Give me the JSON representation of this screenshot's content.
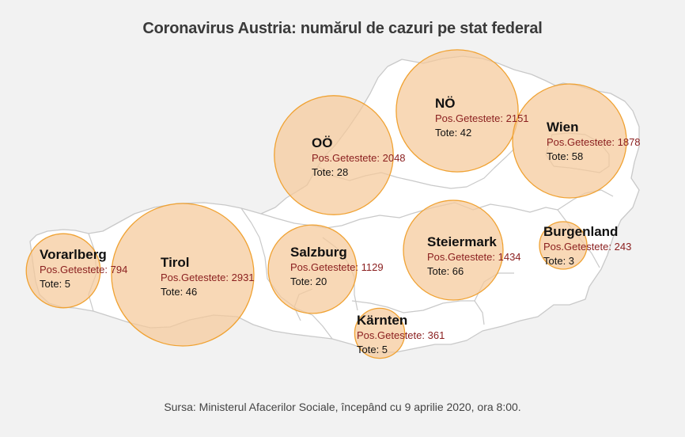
{
  "title": "Coronavirus Austria: numărul de cazuri pe stat federal",
  "source": "Sursa: Ministerul Afacerilor Sociale, începând cu 9 aprilie 2020, ora 8:00.",
  "colors": {
    "background": "#f2f2f2",
    "land": "#ffffff",
    "border": "#c9c9c9",
    "bubble_fill": "#f5c99a",
    "bubble_stroke": "#f0a232",
    "positive_text": "#8a1e1e"
  },
  "states": [
    {
      "id": "vorarlberg",
      "name": "Vorarlberg",
      "positive_label": "Pos.Getestete:",
      "positive": 794,
      "dead_label": "Tote:",
      "dead": 5
    },
    {
      "id": "tirol",
      "name": "Tirol",
      "positive_label": "Pos.Getestete:",
      "positive": 2931,
      "dead_label": "Tote:",
      "dead": 46
    },
    {
      "id": "salzburg",
      "name": "Salzburg",
      "positive_label": "Pos.Getestete:",
      "positive": 1129,
      "dead_label": "Tote:",
      "dead": 20
    },
    {
      "id": "ooe",
      "name": "OÖ",
      "positive_label": "Pos.Getestete:",
      "positive": 2048,
      "dead_label": "Tote:",
      "dead": 28
    },
    {
      "id": "noe",
      "name": "NÖ",
      "positive_label": "Pos.Getestete:",
      "positive": 2151,
      "dead_label": "Tote:",
      "dead": 42
    },
    {
      "id": "wien",
      "name": "Wien",
      "positive_label": "Pos.Getestete:",
      "positive": 1878,
      "dead_label": "Tote:",
      "dead": 58
    },
    {
      "id": "steiermark",
      "name": "Steiermark",
      "positive_label": "Pos.Getestete:",
      "positive": 1434,
      "dead_label": "Tote:",
      "dead": 66
    },
    {
      "id": "burgenland",
      "name": "Burgenland",
      "positive_label": "Pos.Getestete:",
      "positive": 243,
      "dead_label": "Tote:",
      "dead": 3
    },
    {
      "id": "kaernten",
      "name": "Kärnten",
      "positive_label": "Pos.Getestete:",
      "positive": 361,
      "dead_label": "Tote:",
      "dead": 5
    }
  ]
}
